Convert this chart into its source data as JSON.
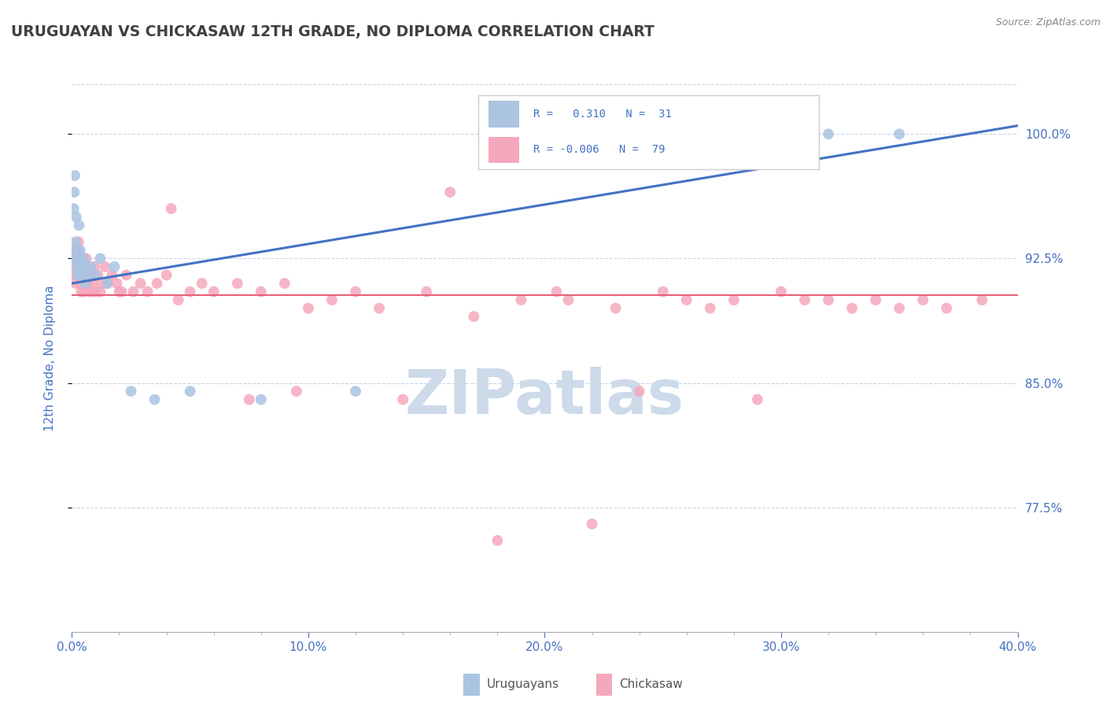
{
  "title": "URUGUAYAN VS CHICKASAW 12TH GRADE, NO DIPLOMA CORRELATION CHART",
  "source_text": "Source: ZipAtlas.com",
  "ylabel": "12th Grade, No Diploma",
  "x_min": 0.0,
  "x_max": 40.0,
  "y_min": 70.0,
  "y_max": 103.0,
  "ytick_labels": [
    "77.5%",
    "85.0%",
    "92.5%",
    "100.0%"
  ],
  "ytick_values": [
    77.5,
    85.0,
    92.5,
    100.0
  ],
  "xtick_labels": [
    "0.0%",
    "10.0%",
    "20.0%",
    "30.0%",
    "40.0%"
  ],
  "xtick_values": [
    0.0,
    10.0,
    20.0,
    30.0,
    40.0
  ],
  "uruguayan_color": "#aac4e2",
  "chickasaw_color": "#f5a8bc",
  "trend_blue": "#4472c4",
  "trend_pink": "#e8607a",
  "watermark": "ZIPatlas",
  "watermark_color": "#ccdaea",
  "background_color": "#ffffff",
  "title_color": "#404040",
  "axis_label_color": "#4472c4",
  "source_color": "#888888",
  "legend_label_color": "#4472c4",
  "uruguayan_x": [
    0.05,
    0.08,
    0.1,
    0.12,
    0.15,
    0.18,
    0.2,
    0.22,
    0.25,
    0.28,
    0.3,
    0.35,
    0.38,
    0.4,
    0.45,
    0.5,
    0.55,
    0.6,
    0.7,
    0.8,
    1.0,
    1.2,
    1.5,
    1.8,
    2.5,
    3.5,
    5.0,
    8.0,
    12.0,
    32.0,
    35.0
  ],
  "uruguayan_y": [
    92.5,
    95.5,
    96.5,
    97.5,
    93.5,
    95.0,
    92.0,
    93.0,
    91.5,
    92.5,
    94.5,
    93.0,
    91.5,
    92.0,
    91.5,
    92.5,
    91.0,
    92.0,
    91.5,
    92.0,
    91.5,
    92.5,
    91.0,
    92.0,
    84.5,
    84.0,
    84.5,
    84.0,
    84.5,
    100.0,
    100.0
  ],
  "chickasaw_x": [
    0.05,
    0.08,
    0.1,
    0.12,
    0.15,
    0.18,
    0.2,
    0.22,
    0.25,
    0.28,
    0.3,
    0.35,
    0.4,
    0.45,
    0.5,
    0.55,
    0.6,
    0.65,
    0.7,
    0.75,
    0.8,
    0.85,
    0.9,
    0.95,
    1.0,
    1.1,
    1.2,
    1.3,
    1.4,
    1.5,
    1.7,
    1.9,
    2.1,
    2.3,
    2.6,
    2.9,
    3.2,
    3.6,
    4.0,
    4.5,
    5.0,
    5.5,
    6.0,
    7.0,
    8.0,
    9.0,
    10.0,
    11.0,
    12.0,
    13.0,
    15.0,
    17.0,
    19.0,
    21.0,
    23.0,
    25.0,
    27.0,
    28.0,
    30.0,
    32.0,
    33.0,
    34.0,
    35.0,
    36.0,
    37.0,
    38.5,
    2.0,
    4.2,
    7.5,
    9.5,
    14.0,
    16.0,
    20.5,
    24.0,
    26.0,
    29.0,
    31.0,
    22.0,
    18.0
  ],
  "chickasaw_y": [
    92.0,
    93.0,
    91.5,
    92.5,
    91.0,
    93.0,
    92.5,
    91.5,
    92.5,
    93.5,
    92.0,
    91.0,
    90.5,
    91.5,
    90.5,
    91.0,
    92.5,
    91.0,
    91.5,
    90.5,
    91.5,
    90.5,
    91.0,
    92.0,
    90.5,
    91.5,
    90.5,
    91.0,
    92.0,
    91.0,
    91.5,
    91.0,
    90.5,
    91.5,
    90.5,
    91.0,
    90.5,
    91.0,
    91.5,
    90.0,
    90.5,
    91.0,
    90.5,
    91.0,
    90.5,
    91.0,
    89.5,
    90.0,
    90.5,
    89.5,
    90.5,
    89.0,
    90.0,
    90.0,
    89.5,
    90.5,
    89.5,
    90.0,
    90.5,
    90.0,
    89.5,
    90.0,
    89.5,
    90.0,
    89.5,
    90.0,
    90.5,
    95.5,
    84.0,
    84.5,
    84.0,
    96.5,
    90.5,
    84.5,
    90.0,
    84.0,
    90.0,
    76.5,
    75.5
  ],
  "u_trend_y0": 91.0,
  "u_trend_y1": 100.5,
  "c_trend_y": 90.3,
  "grid_color": "#c8d4e8",
  "grid_linestyle": "--",
  "grid_linewidth": 0.8
}
